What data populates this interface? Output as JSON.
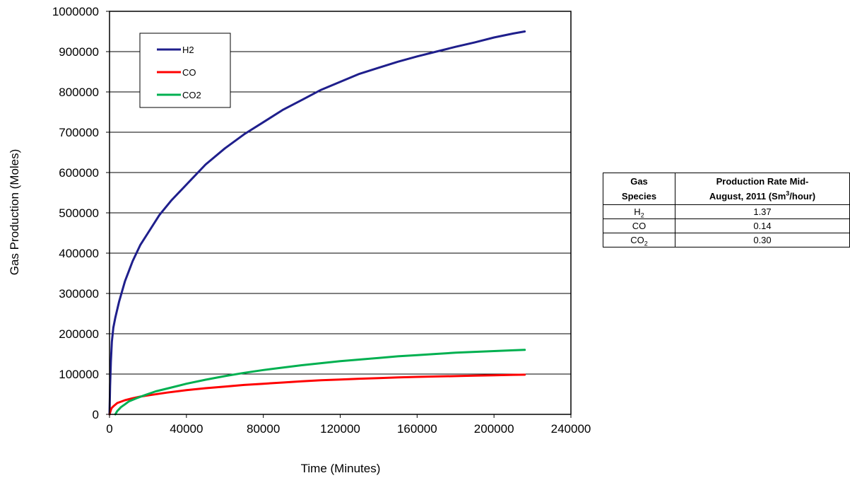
{
  "chart_data": {
    "type": "line",
    "xlabel": "Time (Minutes)",
    "ylabel": "Gas Production (Moles)",
    "xlim": [
      0,
      240000
    ],
    "ylim": [
      0,
      1000000
    ],
    "x_ticks": [
      0,
      40000,
      80000,
      120000,
      160000,
      200000,
      240000
    ],
    "y_ticks": [
      0,
      100000,
      200000,
      300000,
      400000,
      500000,
      600000,
      700000,
      800000,
      900000,
      1000000
    ],
    "x_tick_labels": [
      "0",
      "40000",
      "80000",
      "120000",
      "160000",
      "200000",
      "240000"
    ],
    "y_tick_labels": [
      "0",
      "100000",
      "200000",
      "300000",
      "400000",
      "500000",
      "600000",
      "700000",
      "800000",
      "900000",
      "1000000"
    ],
    "grid": "horizontal",
    "legend_position": "top-left",
    "series": [
      {
        "name": "H2",
        "color": "#1f1f8c",
        "x": [
          0,
          300,
          700,
          1200,
          2000,
          3000,
          5000,
          8000,
          12000,
          16000,
          20000,
          26000,
          32000,
          40000,
          50000,
          60000,
          70000,
          80000,
          90000,
          100000,
          110000,
          120000,
          130000,
          140000,
          150000,
          160000,
          170000,
          180000,
          190000,
          200000,
          210000,
          216000
        ],
        "y": [
          0,
          70000,
          130000,
          180000,
          215000,
          240000,
          280000,
          330000,
          380000,
          420000,
          450000,
          495000,
          530000,
          570000,
          620000,
          660000,
          695000,
          725000,
          755000,
          780000,
          805000,
          825000,
          845000,
          860000,
          875000,
          888000,
          900000,
          912000,
          923000,
          935000,
          945000,
          950000
        ]
      },
      {
        "name": "CO",
        "color": "#ff0000",
        "x": [
          0,
          1000,
          2000,
          4000,
          8000,
          12000,
          16000,
          20000,
          30000,
          40000,
          50000,
          60000,
          70000,
          80000,
          90000,
          100000,
          110000,
          120000,
          130000,
          140000,
          150000,
          160000,
          170000,
          180000,
          190000,
          200000,
          210000,
          216000
        ],
        "y": [
          0,
          15000,
          20000,
          28000,
          35000,
          40000,
          44000,
          47000,
          54000,
          60000,
          65000,
          69000,
          73000,
          76000,
          79000,
          82000,
          84500,
          86500,
          88500,
          90000,
          91500,
          93000,
          94000,
          95000,
          96000,
          97000,
          98000,
          98500
        ]
      },
      {
        "name": "CO2",
        "color": "#00b050",
        "x": [
          3000,
          4000,
          6000,
          8000,
          10000,
          14000,
          18000,
          24000,
          30000,
          40000,
          50000,
          60000,
          70000,
          80000,
          90000,
          100000,
          110000,
          120000,
          130000,
          140000,
          150000,
          160000,
          170000,
          180000,
          190000,
          200000,
          210000,
          216000
        ],
        "y": [
          0,
          8000,
          18000,
          25000,
          32000,
          40000,
          47000,
          57000,
          64000,
          76000,
          86000,
          95000,
          103000,
          110000,
          116000,
          122000,
          127000,
          132000,
          136000,
          140000,
          144000,
          147000,
          150000,
          153000,
          155000,
          157000,
          159000,
          160000
        ]
      }
    ]
  },
  "table": {
    "header": {
      "species_line1": "Gas",
      "species_line2": "Species",
      "rate_line1": "Production  Rate Mid-",
      "rate_line2_pre": "August, 2011 (Sm",
      "rate_line2_sup": "3",
      "rate_line2_post": "/hour)"
    },
    "rows": [
      {
        "species_base": "H",
        "species_sub": "2",
        "rate": "1.37"
      },
      {
        "species_base": "CO",
        "species_sub": "",
        "rate": "0.14"
      },
      {
        "species_base": "CO",
        "species_sub": "2",
        "rate": "0.30"
      }
    ]
  }
}
